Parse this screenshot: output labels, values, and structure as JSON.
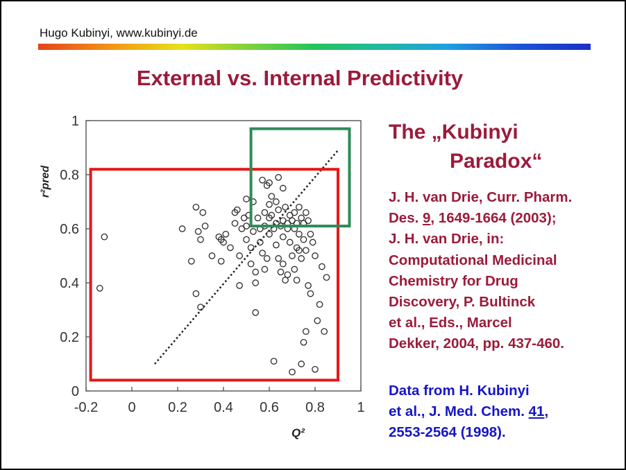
{
  "header": {
    "author": "Hugo Kubinyi, www.kubinyi.de"
  },
  "title": "External vs. Internal Predictivity",
  "paradox": {
    "line1": "The „Kubinyi",
    "line2": "Paradox“"
  },
  "references": {
    "line1": "J. H. van Drie, Curr. Pharm.",
    "line2_pre": "Des. ",
    "line2_vol": "9",
    "line2_post": ", 1649-1664 (2003);",
    "line3": "J. H. van Drie, in:",
    "line4": "Computational Medicinal",
    "line5": "Chemistry for Drug",
    "line6": "Discovery, P. Bultinck",
    "line7": "et al., Eds., Marcel",
    "line8": "Dekker, 2004, pp. 437-460."
  },
  "data_source": {
    "line1": "Data from H. Kubinyi",
    "line2_pre": "et al., J. Med. Chem. ",
    "line2_vol": "41",
    "line2_post": ",",
    "line3": "2553-2564 (1998)."
  },
  "chart_data": {
    "type": "scatter",
    "title": "",
    "xlabel": "Q²",
    "ylabel": "r²pred",
    "xlim": [
      -0.2,
      1.0
    ],
    "ylim": [
      0,
      1.0
    ],
    "x_ticks": [
      "-0.2",
      "0",
      "0.2",
      "0.4",
      "0.6",
      "0.8",
      "1"
    ],
    "y_ticks": [
      "0",
      "0.2",
      "0.4",
      "0.6",
      "0.8",
      "1"
    ],
    "diagonal_line": {
      "x": [
        0.1,
        0.9
      ],
      "y": [
        0.1,
        0.89
      ]
    },
    "regions": [
      {
        "name": "red-box",
        "color": "#e41818",
        "x": [
          -0.18,
          0.9
        ],
        "y": [
          0.04,
          0.82
        ]
      },
      {
        "name": "green-box",
        "color": "#2e8b57",
        "x": [
          0.52,
          0.95
        ],
        "y": [
          0.61,
          0.97
        ]
      }
    ],
    "points": [
      [
        -0.14,
        0.38
      ],
      [
        -0.12,
        0.57
      ],
      [
        0.22,
        0.6
      ],
      [
        0.26,
        0.48
      ],
      [
        0.28,
        0.68
      ],
      [
        0.28,
        0.36
      ],
      [
        0.29,
        0.59
      ],
      [
        0.3,
        0.56
      ],
      [
        0.3,
        0.31
      ],
      [
        0.31,
        0.66
      ],
      [
        0.32,
        0.61
      ],
      [
        0.35,
        0.5
      ],
      [
        0.38,
        0.57
      ],
      [
        0.39,
        0.48
      ],
      [
        0.39,
        0.56
      ],
      [
        0.4,
        0.55
      ],
      [
        0.41,
        0.58
      ],
      [
        0.43,
        0.53
      ],
      [
        0.45,
        0.62
      ],
      [
        0.45,
        0.66
      ],
      [
        0.46,
        0.67
      ],
      [
        0.47,
        0.5
      ],
      [
        0.47,
        0.39
      ],
      [
        0.48,
        0.6
      ],
      [
        0.49,
        0.64
      ],
      [
        0.5,
        0.71
      ],
      [
        0.5,
        0.61
      ],
      [
        0.5,
        0.56
      ],
      [
        0.51,
        0.65
      ],
      [
        0.52,
        0.53
      ],
      [
        0.52,
        0.47
      ],
      [
        0.53,
        0.7
      ],
      [
        0.53,
        0.59
      ],
      [
        0.54,
        0.44
      ],
      [
        0.54,
        0.4
      ],
      [
        0.54,
        0.29
      ],
      [
        0.55,
        0.64
      ],
      [
        0.56,
        0.6
      ],
      [
        0.56,
        0.55
      ],
      [
        0.57,
        0.78
      ],
      [
        0.57,
        0.51
      ],
      [
        0.58,
        0.66
      ],
      [
        0.58,
        0.61
      ],
      [
        0.58,
        0.45
      ],
      [
        0.59,
        0.76
      ],
      [
        0.59,
        0.49
      ],
      [
        0.6,
        0.69
      ],
      [
        0.6,
        0.64
      ],
      [
        0.6,
        0.58
      ],
      [
        0.6,
        0.77
      ],
      [
        0.61,
        0.72
      ],
      [
        0.61,
        0.65
      ],
      [
        0.62,
        0.6
      ],
      [
        0.62,
        0.11
      ],
      [
        0.63,
        0.7
      ],
      [
        0.63,
        0.62
      ],
      [
        0.63,
        0.54
      ],
      [
        0.64,
        0.79
      ],
      [
        0.64,
        0.67
      ],
      [
        0.64,
        0.49
      ],
      [
        0.65,
        0.61
      ],
      [
        0.65,
        0.44
      ],
      [
        0.66,
        0.75
      ],
      [
        0.66,
        0.63
      ],
      [
        0.66,
        0.57
      ],
      [
        0.66,
        0.47
      ],
      [
        0.67,
        0.68
      ],
      [
        0.67,
        0.41
      ],
      [
        0.68,
        0.62
      ],
      [
        0.68,
        0.6
      ],
      [
        0.68,
        0.43
      ],
      [
        0.69,
        0.65
      ],
      [
        0.69,
        0.55
      ],
      [
        0.7,
        0.63
      ],
      [
        0.7,
        0.5
      ],
      [
        0.7,
        0.07
      ],
      [
        0.71,
        0.66
      ],
      [
        0.71,
        0.6
      ],
      [
        0.71,
        0.45
      ],
      [
        0.72,
        0.62
      ],
      [
        0.72,
        0.53
      ],
      [
        0.72,
        0.41
      ],
      [
        0.73,
        0.68
      ],
      [
        0.73,
        0.58
      ],
      [
        0.73,
        0.52
      ],
      [
        0.74,
        0.64
      ],
      [
        0.74,
        0.49
      ],
      [
        0.74,
        0.1
      ],
      [
        0.75,
        0.62
      ],
      [
        0.75,
        0.56
      ],
      [
        0.75,
        0.18
      ],
      [
        0.76,
        0.66
      ],
      [
        0.76,
        0.52
      ],
      [
        0.76,
        0.22
      ],
      [
        0.77,
        0.63
      ],
      [
        0.77,
        0.39
      ],
      [
        0.78,
        0.58
      ],
      [
        0.78,
        0.36
      ],
      [
        0.79,
        0.55
      ],
      [
        0.8,
        0.5
      ],
      [
        0.8,
        0.08
      ],
      [
        0.81,
        0.26
      ],
      [
        0.82,
        0.32
      ],
      [
        0.83,
        0.46
      ],
      [
        0.84,
        0.22
      ],
      [
        0.85,
        0.42
      ]
    ]
  }
}
